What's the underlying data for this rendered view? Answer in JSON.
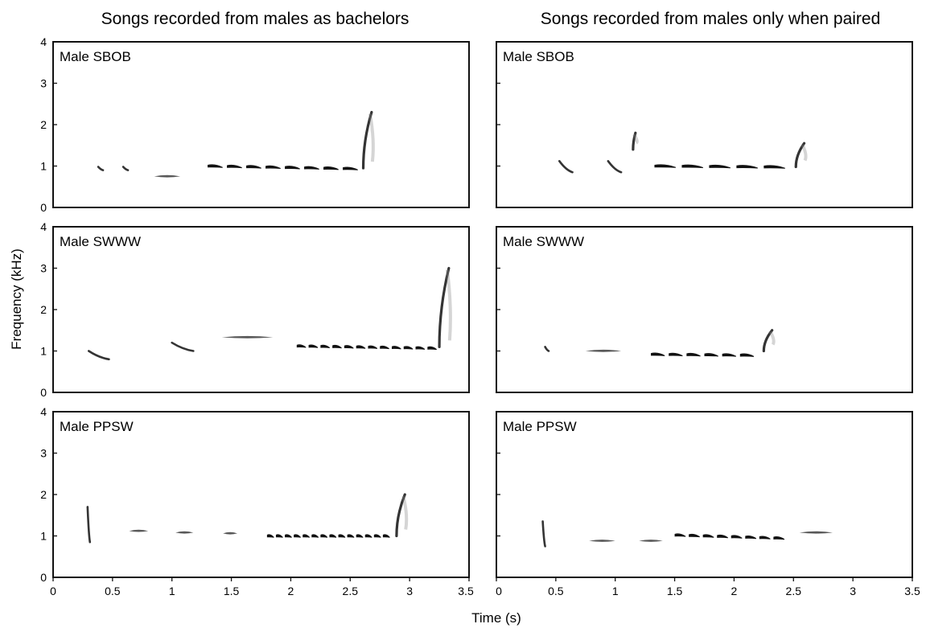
{
  "column_titles": [
    "Songs recorded from males as bachelors",
    "Songs recorded from males only when paired"
  ],
  "ylabel": "Frequency (kHz)",
  "xlabel": "Time (s)",
  "x_ticks": [
    "0",
    "0.5",
    "1",
    "1.5",
    "2",
    "2.5",
    "3",
    "3.5"
  ],
  "y_ticks": [
    "0",
    "1",
    "2",
    "3",
    "4"
  ],
  "chart_data": [
    {
      "type": "spectrogram",
      "column": "Songs recorded from males as bachelors",
      "label": "Male SBOB",
      "xlim": [
        0,
        3.5
      ],
      "ylim": [
        0,
        4
      ],
      "syllables": [
        {
          "kind": "down",
          "t": 0.38,
          "dur": 0.04,
          "f_start": 0.98,
          "f_end": 0.9
        },
        {
          "kind": "down",
          "t": 0.59,
          "dur": 0.04,
          "f_start": 0.98,
          "f_end": 0.9
        },
        {
          "kind": "flat",
          "t": 0.85,
          "dur": 0.22,
          "f_start": 0.75,
          "f_end": 0.75
        },
        {
          "kind": "trill",
          "t": 1.3,
          "dur": 1.3,
          "f_start": 1.0,
          "f_end": 0.94,
          "notes": 8
        },
        {
          "kind": "up",
          "t": 2.61,
          "dur": 0.07,
          "f_start": 0.95,
          "f_end": 2.3
        }
      ]
    },
    {
      "type": "spectrogram",
      "column": "Songs recorded from males only when paired",
      "label": "Male SBOB",
      "xlim": [
        0,
        3.5
      ],
      "ylim": [
        0,
        4
      ],
      "syllables": [
        {
          "kind": "down",
          "t": 0.53,
          "dur": 0.11,
          "f_start": 1.12,
          "f_end": 0.85
        },
        {
          "kind": "down",
          "t": 0.94,
          "dur": 0.11,
          "f_start": 1.12,
          "f_end": 0.85
        },
        {
          "kind": "up",
          "t": 1.15,
          "dur": 0.02,
          "f_start": 1.4,
          "f_end": 1.8
        },
        {
          "kind": "trill",
          "t": 1.33,
          "dur": 1.15,
          "f_start": 1.0,
          "f_end": 0.98,
          "notes": 5
        },
        {
          "kind": "up",
          "t": 2.52,
          "dur": 0.07,
          "f_start": 0.98,
          "f_end": 1.55
        }
      ]
    },
    {
      "type": "spectrogram",
      "column": "Songs recorded from males as bachelors",
      "label": "Male SWWW",
      "xlim": [
        0,
        3.5
      ],
      "ylim": [
        0,
        4
      ],
      "syllables": [
        {
          "kind": "down",
          "t": 0.3,
          "dur": 0.17,
          "f_start": 1.0,
          "f_end": 0.8
        },
        {
          "kind": "down",
          "t": 1.0,
          "dur": 0.18,
          "f_start": 1.2,
          "f_end": 1.0
        },
        {
          "kind": "flat",
          "t": 1.42,
          "dur": 0.43,
          "f_start": 1.33,
          "f_end": 1.33
        },
        {
          "kind": "trill",
          "t": 2.05,
          "dur": 1.2,
          "f_start": 1.12,
          "f_end": 1.07,
          "notes": 12
        },
        {
          "kind": "up",
          "t": 3.25,
          "dur": 0.08,
          "f_start": 1.1,
          "f_end": 3.0
        }
      ]
    },
    {
      "type": "spectrogram",
      "column": "Songs recorded from males only when paired",
      "label": "Male SWWW",
      "xlim": [
        0,
        3.5
      ],
      "ylim": [
        0,
        4
      ],
      "syllables": [
        {
          "kind": "down",
          "t": 0.41,
          "dur": 0.03,
          "f_start": 1.1,
          "f_end": 1.0
        },
        {
          "kind": "flat",
          "t": 0.75,
          "dur": 0.3,
          "f_start": 1.0,
          "f_end": 1.0
        },
        {
          "kind": "trill",
          "t": 1.3,
          "dur": 0.9,
          "f_start": 0.92,
          "f_end": 0.9,
          "notes": 6
        },
        {
          "kind": "up",
          "t": 2.25,
          "dur": 0.07,
          "f_start": 1.0,
          "f_end": 1.5
        }
      ]
    },
    {
      "type": "spectrogram",
      "column": "Songs recorded from males as bachelors",
      "label": "Male PPSW",
      "xlim": [
        0,
        3.5
      ],
      "ylim": [
        0,
        4
      ],
      "syllables": [
        {
          "kind": "down",
          "t": 0.29,
          "dur": 0.02,
          "f_start": 1.7,
          "f_end": 0.85
        },
        {
          "kind": "flat",
          "t": 0.64,
          "dur": 0.16,
          "f_start": 1.12,
          "f_end": 1.12
        },
        {
          "kind": "flat",
          "t": 1.03,
          "dur": 0.15,
          "f_start": 1.08,
          "f_end": 1.08
        },
        {
          "kind": "flat",
          "t": 1.43,
          "dur": 0.12,
          "f_start": 1.06,
          "f_end": 1.06
        },
        {
          "kind": "trill",
          "t": 1.8,
          "dur": 1.05,
          "f_start": 1.0,
          "f_end": 1.0,
          "notes": 14
        },
        {
          "kind": "up",
          "t": 2.89,
          "dur": 0.07,
          "f_start": 1.0,
          "f_end": 2.0
        }
      ]
    },
    {
      "type": "spectrogram",
      "column": "Songs recorded from males only when paired",
      "label": "Male PPSW",
      "xlim": [
        0,
        3.5
      ],
      "ylim": [
        0,
        4
      ],
      "syllables": [
        {
          "kind": "down",
          "t": 0.39,
          "dur": 0.02,
          "f_start": 1.35,
          "f_end": 0.75
        },
        {
          "kind": "flat",
          "t": 0.78,
          "dur": 0.22,
          "f_start": 0.88,
          "f_end": 0.88
        },
        {
          "kind": "flat",
          "t": 1.2,
          "dur": 0.2,
          "f_start": 0.88,
          "f_end": 0.88
        },
        {
          "kind": "trill",
          "t": 1.5,
          "dur": 0.95,
          "f_start": 1.02,
          "f_end": 0.95,
          "notes": 8
        },
        {
          "kind": "flat",
          "t": 2.55,
          "dur": 0.28,
          "f_start": 1.08,
          "f_end": 1.08
        }
      ]
    }
  ]
}
